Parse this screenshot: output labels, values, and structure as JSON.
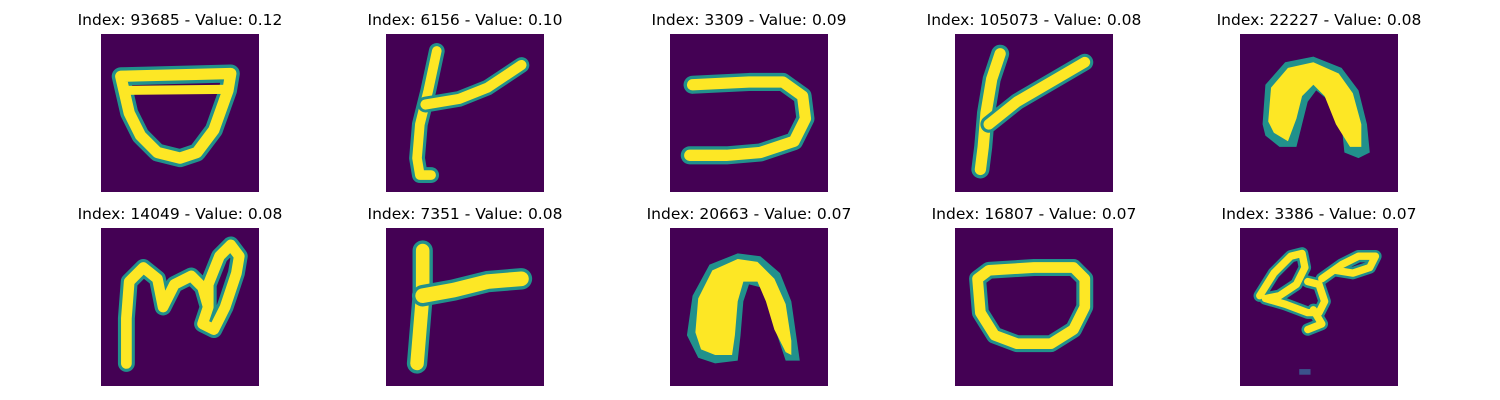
{
  "figure": {
    "panels": [
      {
        "title": "Index: 93685 - Value: 0.12",
        "glyph": "cup-loop"
      },
      {
        "title": "Index: 6156 - Value: 0.10",
        "glyph": "slanted-t"
      },
      {
        "title": "Index: 3309 - Value: 0.09",
        "glyph": "reversed-c"
      },
      {
        "title": "Index: 105073 - Value: 0.08",
        "glyph": "slanted-t"
      },
      {
        "title": "Index: 22227 - Value: 0.08",
        "glyph": "arch-blob"
      },
      {
        "title": "Index: 14049 - Value: 0.08",
        "glyph": "loop-squiggle"
      },
      {
        "title": "Index: 7351 - Value: 0.08",
        "glyph": "t-bar"
      },
      {
        "title": "Index: 20663 - Value: 0.07",
        "glyph": "arch-filled"
      },
      {
        "title": "Index: 16807 - Value: 0.07",
        "glyph": "rounded-o"
      },
      {
        "title": "Index: 3386 - Value: 0.07",
        "glyph": "fish-loop"
      }
    ],
    "colors": {
      "background": "#440154",
      "stroke": "#fde725",
      "stroke_edge": "#21918c",
      "title_text": "#000000"
    }
  }
}
